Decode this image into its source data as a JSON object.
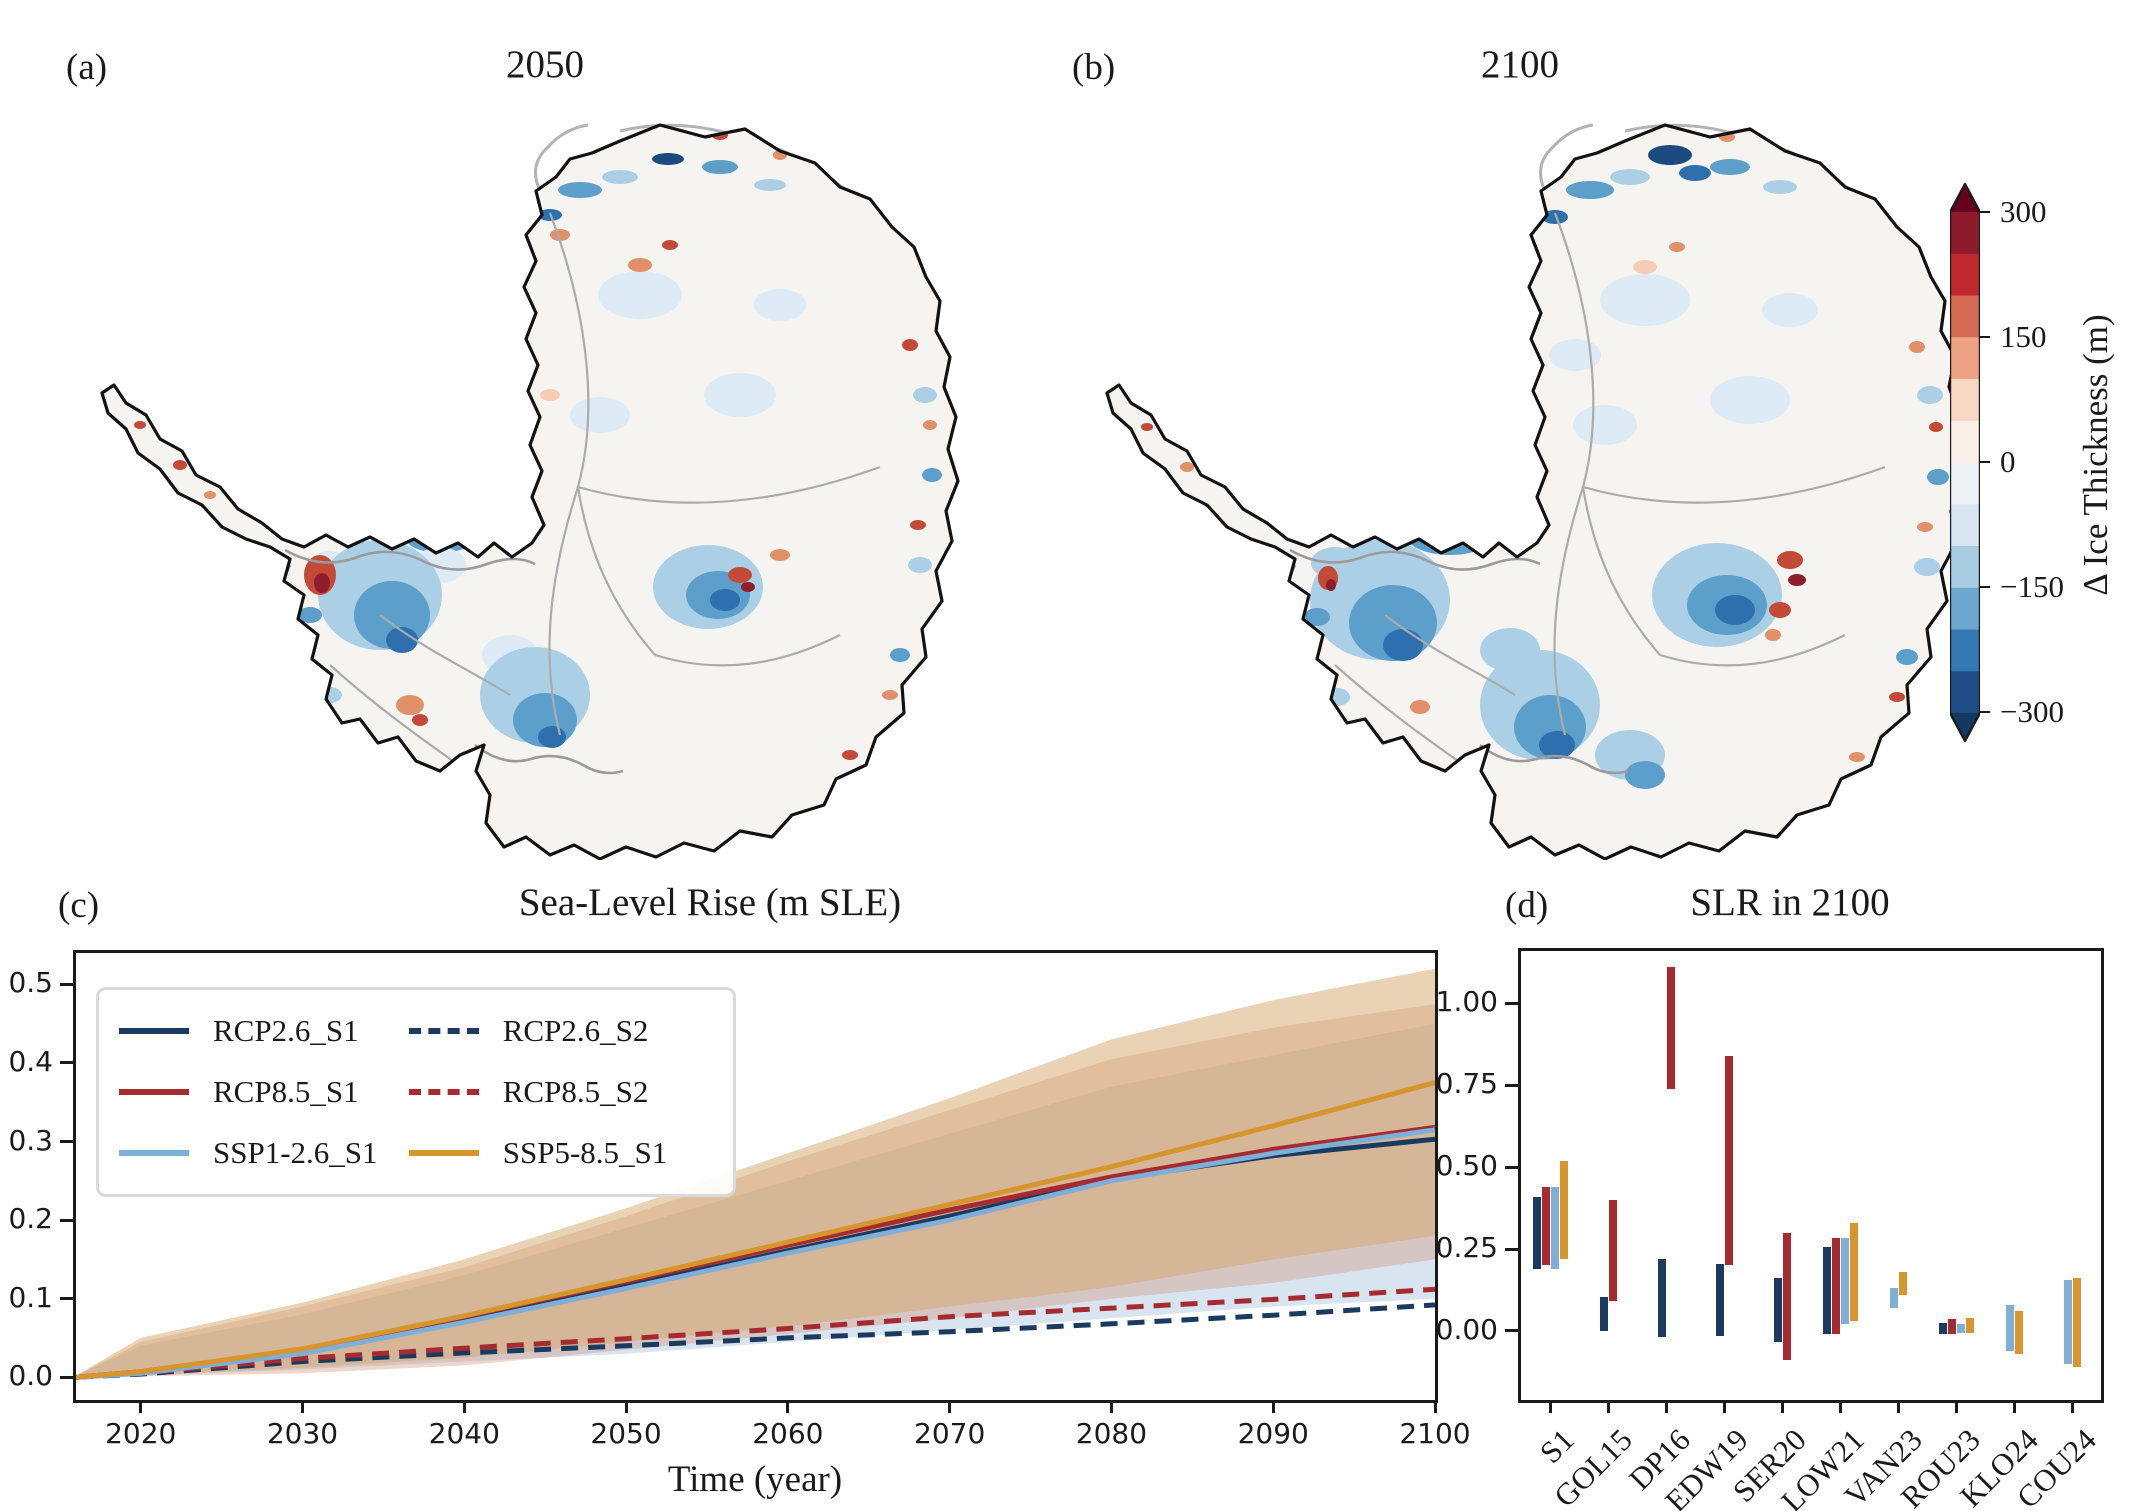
{
  "figure": {
    "panel_a": {
      "label": "(a)",
      "title": "2050"
    },
    "panel_b": {
      "label": "(b)",
      "title": "2100"
    },
    "panel_c": {
      "label": "(c)"
    },
    "panel_d": {
      "label": "(d)"
    }
  },
  "palette": {
    "navy": "#1b3a5f",
    "red": "#a52b30",
    "lightblue": "#7fafd6",
    "orange": "#d6952d"
  },
  "colorbar": {
    "label": "Δ Ice Thickness (m)",
    "ticks": [
      {
        "text": "300",
        "value": 300
      },
      {
        "text": "150",
        "value": 150
      },
      {
        "text": "0",
        "value": 0
      },
      {
        "text": "−150",
        "value": -150
      },
      {
        "text": "−300",
        "value": -300
      }
    ],
    "arrow_top": "#67001f",
    "arrow_bottom": "#12395f",
    "segments": [
      "#8e1b2b",
      "#c1272f",
      "#d56a52",
      "#eda283",
      "#f9d7c2",
      "#faf0e8",
      "#eef2f6",
      "#d7e6f1",
      "#a8cde3",
      "#6ca7d0",
      "#3579b3",
      "#1c4e85"
    ]
  },
  "chart_data": [
    {
      "id": "c",
      "type": "line",
      "title": "Sea-Level Rise (m SLE)",
      "xlabel": "Time (year)",
      "ylabel": "",
      "xlim": [
        2016,
        2100
      ],
      "ylim": [
        -0.029,
        0.54
      ],
      "xticks": [
        "2020",
        "2030",
        "2040",
        "2050",
        "2060",
        "2070",
        "2080",
        "2090",
        "2100"
      ],
      "yticks": [
        "0.0",
        "0.1",
        "0.2",
        "0.3",
        "0.4",
        "0.5"
      ],
      "x": [
        2016,
        2020,
        2030,
        2040,
        2050,
        2060,
        2070,
        2080,
        2090,
        2100
      ],
      "series": [
        {
          "name": "RCP2.6_S2",
          "color": "navy",
          "style": "dashed",
          "values": [
            0,
            0.004,
            0.02,
            0.031,
            0.04,
            0.05,
            0.058,
            0.068,
            0.079,
            0.092
          ]
        },
        {
          "name": "RCP8.5_S2",
          "color": "red",
          "style": "dashed",
          "values": [
            0,
            0.005,
            0.024,
            0.037,
            0.049,
            0.062,
            0.077,
            0.088,
            0.099,
            0.112
          ]
        },
        {
          "name": "RCP2.6_S1",
          "color": "navy",
          "style": "solid",
          "values": [
            0,
            0.006,
            0.032,
            0.072,
            0.116,
            0.161,
            0.205,
            0.252,
            0.282,
            0.303
          ]
        },
        {
          "name": "RCP8.5_S1",
          "color": "red",
          "style": "solid",
          "values": [
            0,
            0.007,
            0.035,
            0.077,
            0.122,
            0.168,
            0.213,
            0.255,
            0.29,
            0.318
          ]
        },
        {
          "name": "SSP1-2.6_S1",
          "color": "lightblue",
          "style": "solid",
          "values": [
            0,
            0.005,
            0.03,
            0.07,
            0.113,
            0.158,
            0.2,
            0.25,
            0.285,
            0.315
          ]
        },
        {
          "name": "SSP5-8.5_S1",
          "color": "orange",
          "style": "solid",
          "values": [
            0,
            0.007,
            0.036,
            0.078,
            0.124,
            0.172,
            0.22,
            0.268,
            0.32,
            0.375
          ]
        }
      ],
      "bands": [
        {
          "name": "SSP1-2.6 uncertainty",
          "fill": "rgba(168,198,224,0.45)",
          "lo": [
            0,
            0.002,
            0.01,
            0.02,
            0.03,
            0.045,
            0.06,
            0.075,
            0.09,
            0.1
          ],
          "hi": [
            0.002,
            0.04,
            0.08,
            0.13,
            0.19,
            0.25,
            0.31,
            0.37,
            0.41,
            0.45
          ]
        },
        {
          "name": "RCP8.5 uncertainty",
          "fill": "rgba(208,138,110,0.35)",
          "lo": [
            0,
            0.001,
            0.005,
            0.015,
            0.035,
            0.055,
            0.075,
            0.1,
            0.12,
            0.15
          ],
          "hi": [
            0.002,
            0.045,
            0.09,
            0.14,
            0.205,
            0.275,
            0.34,
            0.405,
            0.445,
            0.475
          ]
        },
        {
          "name": "SSP5-8.5 uncertainty",
          "fill": "rgba(214,168,108,0.50)",
          "lo": [
            0,
            0.003,
            0.012,
            0.025,
            0.045,
            0.065,
            0.09,
            0.115,
            0.15,
            0.18
          ],
          "hi": [
            0.002,
            0.05,
            0.095,
            0.15,
            0.215,
            0.285,
            0.355,
            0.43,
            0.48,
            0.52
          ]
        }
      ],
      "legend": [
        {
          "label": "RCP2.6_S1",
          "color": "navy",
          "dash": false
        },
        {
          "label": "RCP8.5_S1",
          "color": "red",
          "dash": false
        },
        {
          "label": "SSP1-2.6_S1",
          "color": "lightblue",
          "dash": false
        },
        {
          "label": "RCP2.6_S2",
          "color": "navy",
          "dash": true
        },
        {
          "label": "RCP8.5_S2",
          "color": "red",
          "dash": true
        },
        {
          "label": "SSP5-8.5_S1",
          "color": "orange",
          "dash": false
        }
      ],
      "legend_position": "upper left",
      "grid": false
    },
    {
      "id": "d",
      "type": "range-bar",
      "title": "SLR in 2100",
      "ylim": [
        -0.211,
        1.16
      ],
      "yticks": [
        "0.00",
        "0.25",
        "0.50",
        "0.75",
        "1.00"
      ],
      "categories": [
        "S1",
        "GOL15",
        "DP16",
        "EDW19",
        "SER20",
        "LOW21",
        "VAN23",
        "ROU23",
        "KLO24",
        "COU24"
      ],
      "bars": [
        {
          "cat": "S1",
          "ranges": [
            {
              "color": "navy",
              "lo": 0.19,
              "hi": 0.41
            },
            {
              "color": "red",
              "lo": 0.2,
              "hi": 0.44
            },
            {
              "color": "lightblue",
              "lo": 0.19,
              "hi": 0.44
            },
            {
              "color": "orange",
              "lo": 0.22,
              "hi": 0.52
            }
          ]
        },
        {
          "cat": "GOL15",
          "ranges": [
            {
              "color": "navy",
              "lo": 0.0,
              "hi": 0.105
            },
            {
              "color": "red",
              "lo": 0.09,
              "hi": 0.4
            }
          ]
        },
        {
          "cat": "DP16",
          "ranges": [
            {
              "color": "navy",
              "lo": -0.02,
              "hi": 0.22
            },
            {
              "color": "red",
              "lo": 0.74,
              "hi": 1.11
            }
          ]
        },
        {
          "cat": "EDW19",
          "ranges": [
            {
              "color": "navy",
              "lo": -0.015,
              "hi": 0.205
            },
            {
              "color": "red",
              "lo": 0.2,
              "hi": 0.84
            }
          ]
        },
        {
          "cat": "SER20",
          "ranges": [
            {
              "color": "navy",
              "lo": -0.035,
              "hi": 0.16
            },
            {
              "color": "red",
              "lo": -0.09,
              "hi": 0.3
            }
          ]
        },
        {
          "cat": "LOW21",
          "ranges": [
            {
              "color": "navy",
              "lo": -0.01,
              "hi": 0.255
            },
            {
              "color": "red",
              "lo": -0.01,
              "hi": 0.285
            },
            {
              "color": "lightblue",
              "lo": 0.02,
              "hi": 0.285
            },
            {
              "color": "orange",
              "lo": 0.03,
              "hi": 0.33
            }
          ]
        },
        {
          "cat": "VAN23",
          "ranges": [
            {
              "color": "lightblue",
              "lo": 0.07,
              "hi": 0.13
            },
            {
              "color": "orange",
              "lo": 0.11,
              "hi": 0.18
            }
          ]
        },
        {
          "cat": "ROU23",
          "ranges": [
            {
              "color": "navy",
              "lo": -0.01,
              "hi": 0.025
            },
            {
              "color": "red",
              "lo": -0.01,
              "hi": 0.035
            },
            {
              "color": "lightblue",
              "lo": -0.005,
              "hi": 0.02
            },
            {
              "color": "orange",
              "lo": -0.005,
              "hi": 0.04
            }
          ]
        },
        {
          "cat": "KLO24",
          "ranges": [
            {
              "color": "lightblue",
              "lo": -0.06,
              "hi": 0.08
            },
            {
              "color": "orange",
              "lo": -0.07,
              "hi": 0.06
            }
          ]
        },
        {
          "cat": "COU24",
          "ranges": [
            {
              "color": "lightblue",
              "lo": -0.1,
              "hi": 0.155
            },
            {
              "color": "orange",
              "lo": -0.11,
              "hi": 0.16
            }
          ]
        }
      ],
      "grid": false
    }
  ]
}
